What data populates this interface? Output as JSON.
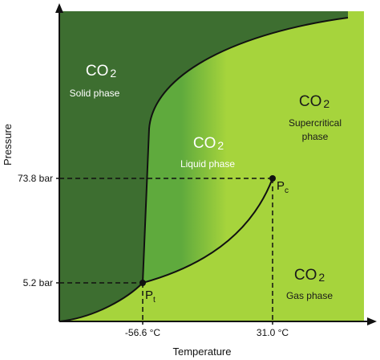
{
  "axes": {
    "x_title": "Temperature",
    "y_title": "Pressure",
    "y_ticks": [
      {
        "label": "73.8 bar"
      },
      {
        "label": "5.2 bar"
      }
    ],
    "x_ticks": [
      {
        "label": "-56.6 °C"
      },
      {
        "label": "31.0 °C"
      }
    ]
  },
  "points": {
    "triple": {
      "label": "P",
      "sub": "t"
    },
    "critical": {
      "label": "P",
      "sub": "c"
    }
  },
  "phases": {
    "solid": {
      "formula": "CO",
      "sub": "2",
      "name": "Solid phase"
    },
    "liquid": {
      "formula": "CO",
      "sub": "2",
      "name": "Liquid phase"
    },
    "supercritical": {
      "formula": "CO",
      "sub": "2",
      "name_line1": "Supercritical",
      "name_line2": "phase"
    },
    "gas": {
      "formula": "CO",
      "sub": "2",
      "name": "Gas phase"
    }
  },
  "colors": {
    "solid": "#3d6e30",
    "liquid": "#5faa3d",
    "supercritical": "#a6d43c",
    "gas": "#a6d43c",
    "axis": "#111111"
  }
}
